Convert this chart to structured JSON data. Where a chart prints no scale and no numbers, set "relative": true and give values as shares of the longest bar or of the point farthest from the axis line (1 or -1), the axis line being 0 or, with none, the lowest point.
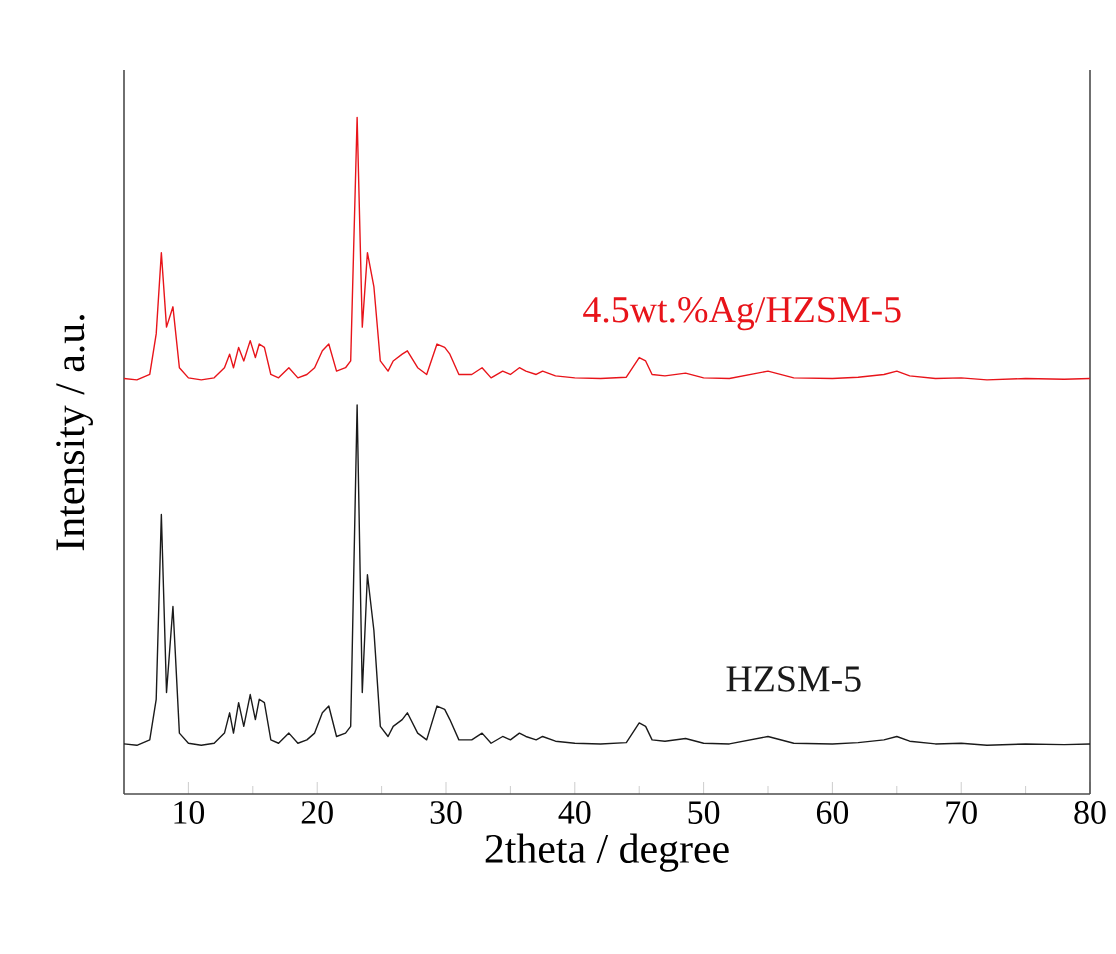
{
  "chart_data": {
    "type": "line",
    "relative": true,
    "xlabel": "2theta / degree",
    "ylabel": "Intensity / a.u.",
    "xlim": [
      5,
      80
    ],
    "xticks": [
      10,
      20,
      30,
      40,
      50,
      60,
      70,
      80
    ],
    "x": [
      5,
      6,
      7,
      7.5,
      7.9,
      8.3,
      8.8,
      9.3,
      10,
      11,
      12,
      12.8,
      13.2,
      13.5,
      13.9,
      14.3,
      14.8,
      15.2,
      15.5,
      15.9,
      16.4,
      17,
      17.8,
      18.5,
      19.2,
      19.8,
      20.4,
      20.9,
      21.5,
      22.2,
      22.6,
      23.1,
      23.5,
      23.9,
      24.4,
      24.9,
      25.5,
      25.9,
      26.6,
      27.0,
      27.8,
      28.5,
      29.3,
      29.9,
      30.3,
      31,
      32,
      32.8,
      33.5,
      34.4,
      35,
      35.7,
      36.2,
      37,
      37.5,
      38.5,
      40,
      42,
      44,
      45.0,
      45.5,
      46,
      47,
      48.6,
      50,
      52,
      55,
      57,
      60,
      62,
      64,
      65,
      66,
      68,
      70,
      72,
      75,
      78,
      80
    ],
    "series": [
      {
        "name": "4.5wt.%Ag/HZSM-5",
        "color": "#e8141a",
        "values": [
          0.614,
          0.612,
          0.62,
          0.68,
          0.8,
          0.69,
          0.72,
          0.63,
          0.615,
          0.612,
          0.615,
          0.63,
          0.65,
          0.63,
          0.66,
          0.64,
          0.67,
          0.645,
          0.665,
          0.66,
          0.62,
          0.615,
          0.63,
          0.615,
          0.62,
          0.63,
          0.655,
          0.665,
          0.625,
          0.63,
          0.64,
          1.0,
          0.69,
          0.8,
          0.75,
          0.64,
          0.625,
          0.64,
          0.65,
          0.655,
          0.63,
          0.62,
          0.665,
          0.66,
          0.65,
          0.62,
          0.62,
          0.63,
          0.615,
          0.625,
          0.62,
          0.63,
          0.625,
          0.62,
          0.625,
          0.618,
          0.615,
          0.614,
          0.616,
          0.645,
          0.64,
          0.62,
          0.618,
          0.622,
          0.615,
          0.614,
          0.625,
          0.615,
          0.614,
          0.616,
          0.62,
          0.625,
          0.618,
          0.614,
          0.615,
          0.612,
          0.614,
          0.613,
          0.614
        ]
      },
      {
        "name": "HZSM-5",
        "color": "#1a1a1a",
        "values": [
          0.074,
          0.072,
          0.08,
          0.14,
          0.413,
          0.15,
          0.277,
          0.09,
          0.075,
          0.072,
          0.075,
          0.09,
          0.12,
          0.09,
          0.135,
          0.1,
          0.147,
          0.11,
          0.14,
          0.135,
          0.08,
          0.075,
          0.09,
          0.075,
          0.08,
          0.09,
          0.12,
          0.13,
          0.085,
          0.09,
          0.1,
          0.575,
          0.15,
          0.324,
          0.242,
          0.1,
          0.085,
          0.1,
          0.11,
          0.12,
          0.09,
          0.08,
          0.13,
          0.125,
          0.11,
          0.08,
          0.08,
          0.09,
          0.075,
          0.085,
          0.08,
          0.09,
          0.085,
          0.08,
          0.085,
          0.078,
          0.075,
          0.074,
          0.076,
          0.105,
          0.1,
          0.08,
          0.078,
          0.082,
          0.075,
          0.074,
          0.085,
          0.075,
          0.074,
          0.076,
          0.08,
          0.085,
          0.078,
          0.074,
          0.075,
          0.072,
          0.074,
          0.073,
          0.074
        ]
      }
    ]
  }
}
